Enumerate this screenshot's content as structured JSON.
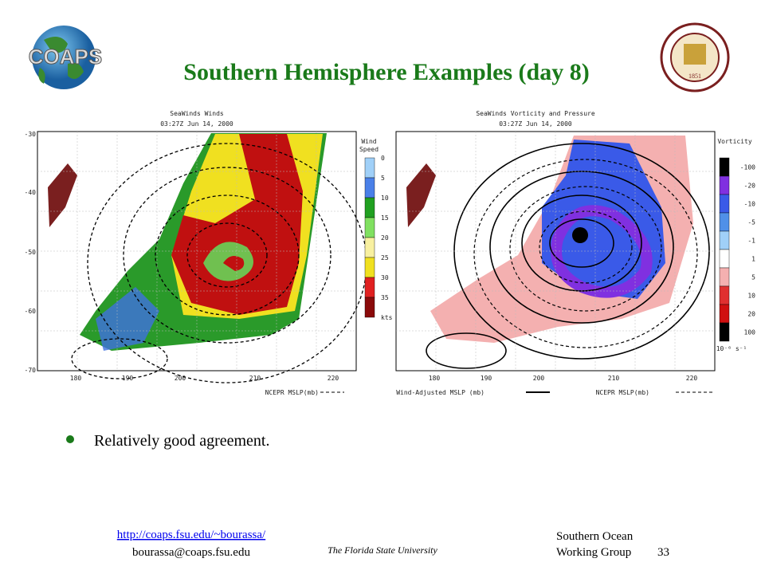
{
  "header": {
    "logo": "COAPS",
    "title": "Southern Hemisphere Examples (day 8)",
    "seal_year": "1851"
  },
  "left_map": {
    "title": "SeaWinds Winds",
    "time": "03:27Z Jun 14, 2000",
    "legend_title": [
      "Wind",
      "Speed"
    ],
    "legend_labels": [
      "0",
      "5",
      "10",
      "15",
      "20",
      "25",
      "30",
      "35",
      "kts"
    ],
    "lat_ticks": [
      "-30",
      "-40",
      "-50",
      "-60",
      "-70"
    ],
    "lon_ticks": [
      "180",
      "190",
      "200",
      "210",
      "220"
    ],
    "caption": "NCEPR MSLP(mb)"
  },
  "right_map": {
    "title": "SeaWinds Vorticity and Pressure",
    "time": "03:27Z Jun 14, 2000",
    "legend_title": "Vorticity",
    "legend_labels": [
      "-100",
      "-20",
      "-10",
      "-5",
      "-1",
      "1",
      "5",
      "10",
      "20",
      "100"
    ],
    "units": "10⁻⁶ s⁻¹",
    "lon_ticks": [
      "180",
      "190",
      "200",
      "210",
      "220"
    ],
    "caption_solid": "Wind-Adjusted MSLP (mb)",
    "caption_dashed": "NCEPR MSLP(mb)"
  },
  "bullets": [
    "Relatively good agreement."
  ],
  "footer": {
    "url": "http://coaps.fsu.edu/~bourassa/",
    "email": "bourassa@coaps.fsu.edu",
    "university": "The Florida State University",
    "group": [
      "Southern Ocean",
      "Working Group"
    ],
    "page": "33"
  }
}
